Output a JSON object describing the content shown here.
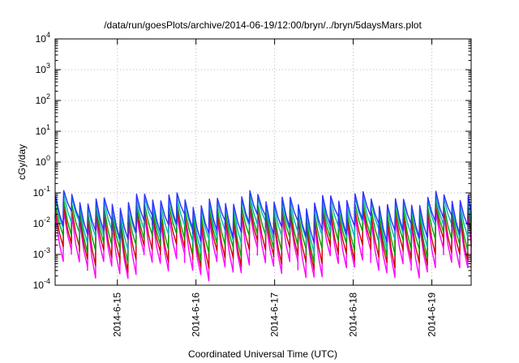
{
  "chart_data": {
    "type": "line",
    "title": "/data/run/goesPlots/archive/2014-06-19/12:00/bryn/../bryn/5daysMars.plot",
    "xlabel": "Coordinated Universal Time (UTC)",
    "ylabel": "cGy/day",
    "y_scale": "log",
    "ylim": [
      0.0001,
      10000
    ],
    "xlim": [
      "2014-06-14 05:00",
      "2014-06-19 12:00"
    ],
    "grid": true,
    "legend": "none",
    "y_ticks": [
      {
        "base": "10",
        "exp": "-4",
        "value": 0.0001
      },
      {
        "base": "10",
        "exp": "-3",
        "value": 0.001
      },
      {
        "base": "10",
        "exp": "-2",
        "value": 0.01
      },
      {
        "base": "10",
        "exp": "-1",
        "value": 0.1
      },
      {
        "base": "10",
        "exp": "0",
        "value": 1
      },
      {
        "base": "10",
        "exp": "1",
        "value": 10
      },
      {
        "base": "10",
        "exp": "2",
        "value": 100
      },
      {
        "base": "10",
        "exp": "3",
        "value": 1000
      },
      {
        "base": "10",
        "exp": "4",
        "value": 10000
      }
    ],
    "x_ticks": [
      {
        "label": "2014-6-15",
        "date": "2014-06-15 00:00"
      },
      {
        "label": "2014-6-16",
        "date": "2014-06-16 00:00"
      },
      {
        "label": "2014-6-17",
        "date": "2014-06-17 00:00"
      },
      {
        "label": "2014-6-18",
        "date": "2014-06-18 00:00"
      },
      {
        "label": "2014-6-19",
        "date": "2014-06-19 00:00"
      }
    ],
    "period_hours": 2.47,
    "series": [
      {
        "color": "#ff00ff",
        "peak": 0.0125,
        "trough": 0.0004
      },
      {
        "color": "#cc0000",
        "peak": 0.018,
        "trough": 0.0009
      },
      {
        "color": "#00a000",
        "peak": 0.028,
        "trough": 0.002
      },
      {
        "color": "#00b5b5",
        "peak": 0.045,
        "trough": 0.0045
      },
      {
        "color": "#3030ff",
        "peak": 0.06,
        "trough": 0.0075
      }
    ]
  }
}
